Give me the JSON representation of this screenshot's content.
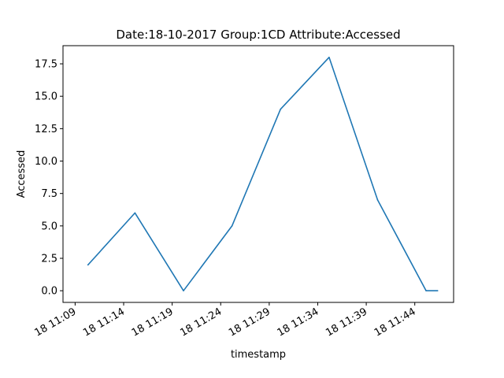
{
  "chart_data": {
    "type": "line",
    "title": "Date:18-10-2017  Group:1CD Attribute:Accessed",
    "xlabel": "timestamp",
    "ylabel": "Accessed",
    "ylim": [
      -0.9,
      18.9
    ],
    "yticks": [
      0.0,
      2.5,
      5.0,
      7.5,
      10.0,
      12.5,
      15.0,
      17.5
    ],
    "ytick_labels": [
      "0.0",
      "2.5",
      "5.0",
      "7.5",
      "10.0",
      "12.5",
      "15.0",
      "17.5"
    ],
    "xlim": [
      "2017-10-18 11:07:45",
      "2017-10-18 11:48:00"
    ],
    "xticks": [
      "2017-10-18 11:09",
      "2017-10-18 11:14",
      "2017-10-18 11:19",
      "2017-10-18 11:24",
      "2017-10-18 11:29",
      "2017-10-18 11:34",
      "2017-10-18 11:39",
      "2017-10-18 11:44"
    ],
    "xtick_labels": [
      "18 11:09",
      "18 11:14",
      "18 11:19",
      "18 11:24",
      "18 11:29",
      "18 11:34",
      "18 11:39",
      "18 11:44"
    ],
    "series": [
      {
        "color": "#1f77b4",
        "x": [
          "2017-10-18 11:10:20",
          "2017-10-18 11:15:10",
          "2017-10-18 11:20:10",
          "2017-10-18 11:25:10",
          "2017-10-18 11:30:10",
          "2017-10-18 11:35:10",
          "2017-10-18 11:40:10",
          "2017-10-18 11:45:10",
          "2017-10-18 11:46:20"
        ],
        "values": [
          2,
          6,
          0,
          5,
          14,
          18,
          7,
          0,
          0
        ]
      }
    ],
    "grid": false,
    "legend": false
  }
}
